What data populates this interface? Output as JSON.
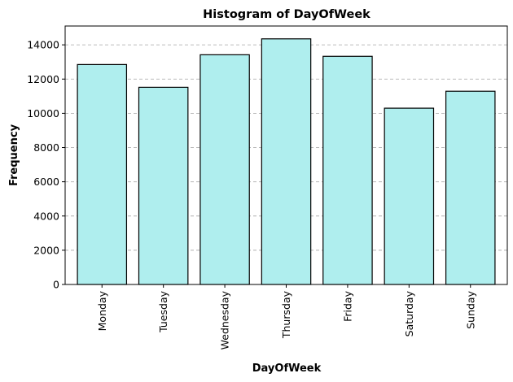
{
  "chart_data": {
    "type": "bar",
    "title": "Histogram of DayOfWeek",
    "xlabel": "DayOfWeek",
    "ylabel": "Frequency",
    "categories": [
      "Monday",
      "Tuesday",
      "Wednesday",
      "Thursday",
      "Friday",
      "Saturday",
      "Sunday"
    ],
    "values": [
      12850,
      11520,
      13420,
      14350,
      13330,
      10300,
      11290
    ],
    "ylim": [
      0,
      15100
    ],
    "yticks": [
      0,
      2000,
      4000,
      6000,
      8000,
      10000,
      12000,
      14000
    ],
    "grid": "y-dashed",
    "bar_color": "#afeeee",
    "edge_color": "#000000"
  }
}
